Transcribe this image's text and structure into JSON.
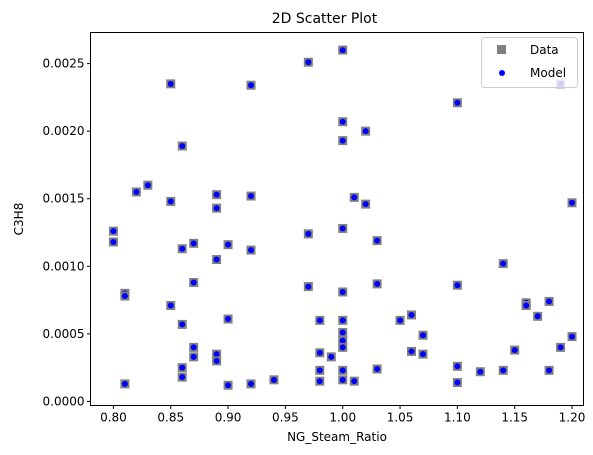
{
  "chart_data": {
    "type": "scatter",
    "title": "2D Scatter Plot",
    "xlabel": "NG_Steam_Ratio",
    "ylabel": "C3H8",
    "xlim": [
      0.78,
      1.21
    ],
    "ylim": [
      -3e-05,
      0.00273
    ],
    "grid": false,
    "legend_position": "top-right",
    "xticks": [
      0.8,
      0.85,
      0.9,
      0.95,
      1.0,
      1.05,
      1.1,
      1.15,
      1.2
    ],
    "xtick_labels": [
      "0.80",
      "0.85",
      "0.90",
      "0.95",
      "1.00",
      "1.05",
      "1.10",
      "1.15",
      "1.20"
    ],
    "yticks": [
      0.0,
      0.0005,
      0.001,
      0.0015,
      0.002,
      0.0025
    ],
    "ytick_labels": [
      "0.0000",
      "0.0005",
      "0.0010",
      "0.0015",
      "0.0020",
      "0.0025"
    ],
    "series": [
      {
        "name": "Data",
        "marker": "square",
        "color": "#808080"
      },
      {
        "name": "Model",
        "marker": "circle",
        "color": "#0000ff"
      }
    ],
    "points": [
      [
        0.8,
        0.00126
      ],
      [
        0.8,
        0.00118
      ],
      [
        0.81,
        0.0008
      ],
      [
        0.81,
        0.00078
      ],
      [
        0.81,
        0.00013
      ],
      [
        0.82,
        0.00155
      ],
      [
        0.83,
        0.0016
      ],
      [
        0.85,
        0.00235
      ],
      [
        0.85,
        0.00148
      ],
      [
        0.85,
        0.00071
      ],
      [
        0.86,
        0.00189
      ],
      [
        0.86,
        0.00113
      ],
      [
        0.86,
        0.00057
      ],
      [
        0.86,
        0.00025
      ],
      [
        0.86,
        0.00018
      ],
      [
        0.87,
        0.00117
      ],
      [
        0.87,
        0.00088
      ],
      [
        0.87,
        0.0004
      ],
      [
        0.87,
        0.00033
      ],
      [
        0.89,
        0.00153
      ],
      [
        0.89,
        0.00143
      ],
      [
        0.89,
        0.00105
      ],
      [
        0.89,
        0.00035
      ],
      [
        0.89,
        0.0003
      ],
      [
        0.9,
        0.00116
      ],
      [
        0.9,
        0.00061
      ],
      [
        0.9,
        0.00012
      ],
      [
        0.92,
        0.00234
      ],
      [
        0.92,
        0.00152
      ],
      [
        0.92,
        0.00112
      ],
      [
        0.92,
        0.00013
      ],
      [
        0.94,
        0.00016
      ],
      [
        0.97,
        0.00251
      ],
      [
        0.97,
        0.00124
      ],
      [
        0.97,
        0.00085
      ],
      [
        0.98,
        0.0006
      ],
      [
        0.98,
        0.00036
      ],
      [
        0.98,
        0.00023
      ],
      [
        0.98,
        0.00015
      ],
      [
        0.99,
        0.00033
      ],
      [
        1.0,
        0.0026
      ],
      [
        1.0,
        0.00207
      ],
      [
        1.0,
        0.00193
      ],
      [
        1.0,
        0.00128
      ],
      [
        1.0,
        0.00081
      ],
      [
        1.0,
        0.0006
      ],
      [
        1.0,
        0.00051
      ],
      [
        1.0,
        0.00045
      ],
      [
        1.0,
        0.0004
      ],
      [
        1.0,
        0.00023
      ],
      [
        1.0,
        0.00016
      ],
      [
        1.01,
        0.00151
      ],
      [
        1.01,
        0.00015
      ],
      [
        1.02,
        0.002
      ],
      [
        1.02,
        0.00146
      ],
      [
        1.03,
        0.00119
      ],
      [
        1.03,
        0.00087
      ],
      [
        1.03,
        0.00024
      ],
      [
        1.05,
        0.0006
      ],
      [
        1.06,
        0.00064
      ],
      [
        1.06,
        0.00037
      ],
      [
        1.07,
        0.00049
      ],
      [
        1.07,
        0.00035
      ],
      [
        1.1,
        0.00221
      ],
      [
        1.1,
        0.00086
      ],
      [
        1.1,
        0.00026
      ],
      [
        1.1,
        0.00014
      ],
      [
        1.12,
        0.00022
      ],
      [
        1.14,
        0.00102
      ],
      [
        1.14,
        0.00023
      ],
      [
        1.15,
        0.00038
      ],
      [
        1.16,
        0.00073
      ],
      [
        1.16,
        0.00071
      ],
      [
        1.17,
        0.00063
      ],
      [
        1.18,
        0.00074
      ],
      [
        1.18,
        0.00023
      ],
      [
        1.19,
        0.00235
      ],
      [
        1.19,
        0.0004
      ],
      [
        1.2,
        0.00147
      ],
      [
        1.2,
        0.00048
      ]
    ]
  }
}
